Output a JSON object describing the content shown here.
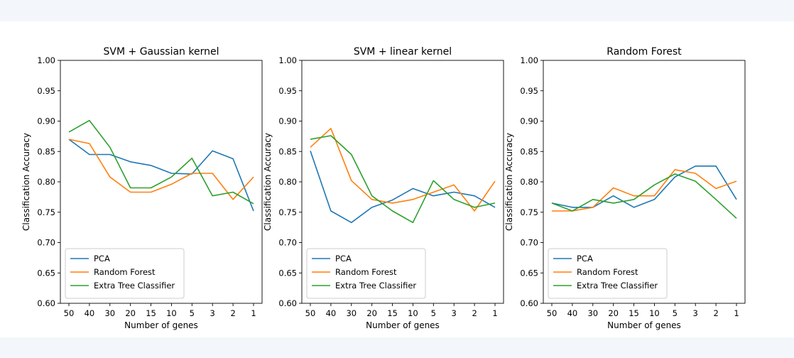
{
  "chart_data": [
    {
      "type": "line",
      "title": "SVM + Gaussian kernel",
      "xlabel": "Number of genes",
      "ylabel": "Classification Accuracy",
      "categories": [
        "50",
        "40",
        "30",
        "20",
        "15",
        "10",
        "5",
        "3",
        "2",
        "1"
      ],
      "ylim": [
        0.6,
        1.0
      ],
      "yticks": [
        "0.60",
        "0.65",
        "0.70",
        "0.75",
        "0.80",
        "0.85",
        "0.90",
        "0.95",
        "1.00"
      ],
      "grid": false,
      "legend": "lower left",
      "series": [
        {
          "name": "PCA",
          "color": "#1f77b4",
          "values": [
            0.87,
            0.845,
            0.845,
            0.833,
            0.827,
            0.814,
            0.813,
            0.851,
            0.838,
            0.752
          ]
        },
        {
          "name": "Random Forest",
          "color": "#ff7f0e",
          "values": [
            0.87,
            0.863,
            0.808,
            0.783,
            0.783,
            0.796,
            0.814,
            0.814,
            0.771,
            0.808
          ]
        },
        {
          "name": "Extra Tree Classifier",
          "color": "#2ca02c",
          "values": [
            0.882,
            0.901,
            0.857,
            0.79,
            0.79,
            0.808,
            0.839,
            0.777,
            0.783,
            0.764
          ]
        }
      ]
    },
    {
      "type": "line",
      "title": "SVM + linear kernel",
      "xlabel": "Number of genes",
      "ylabel": "Classification Accuracy",
      "categories": [
        "50",
        "40",
        "30",
        "20",
        "15",
        "10",
        "5",
        "3",
        "2",
        "1"
      ],
      "ylim": [
        0.6,
        1.0
      ],
      "yticks": [
        "0.60",
        "0.65",
        "0.70",
        "0.75",
        "0.80",
        "0.85",
        "0.90",
        "0.95",
        "1.00"
      ],
      "grid": false,
      "legend": "lower left",
      "series": [
        {
          "name": "PCA",
          "color": "#1f77b4",
          "values": [
            0.851,
            0.752,
            0.733,
            0.758,
            0.77,
            0.789,
            0.777,
            0.783,
            0.777,
            0.758
          ]
        },
        {
          "name": "Random Forest",
          "color": "#ff7f0e",
          "values": [
            0.857,
            0.888,
            0.802,
            0.771,
            0.765,
            0.771,
            0.783,
            0.795,
            0.752,
            0.801
          ]
        },
        {
          "name": "Extra Tree Classifier",
          "color": "#2ca02c",
          "values": [
            0.87,
            0.876,
            0.845,
            0.777,
            0.752,
            0.733,
            0.802,
            0.771,
            0.758,
            0.765
          ]
        }
      ]
    },
    {
      "type": "line",
      "title": "Random Forest",
      "xlabel": "Number of genes",
      "ylabel": "Classification Accuracy",
      "categories": [
        "50",
        "40",
        "30",
        "20",
        "15",
        "10",
        "5",
        "3",
        "2",
        "1"
      ],
      "ylim": [
        0.6,
        1.0
      ],
      "yticks": [
        "0.60",
        "0.65",
        "0.70",
        "0.75",
        "0.80",
        "0.85",
        "0.90",
        "0.95",
        "1.00"
      ],
      "grid": false,
      "legend": "lower left",
      "series": [
        {
          "name": "PCA",
          "color": "#1f77b4",
          "values": [
            0.765,
            0.758,
            0.758,
            0.777,
            0.758,
            0.771,
            0.808,
            0.826,
            0.826,
            0.771
          ]
        },
        {
          "name": "Random Forest",
          "color": "#ff7f0e",
          "values": [
            0.752,
            0.752,
            0.758,
            0.79,
            0.777,
            0.777,
            0.82,
            0.814,
            0.789,
            0.801
          ]
        },
        {
          "name": "Extra Tree Classifier",
          "color": "#2ca02c",
          "values": [
            0.765,
            0.752,
            0.771,
            0.765,
            0.771,
            0.795,
            0.813,
            0.801,
            0.771,
            0.74
          ]
        }
      ]
    }
  ]
}
